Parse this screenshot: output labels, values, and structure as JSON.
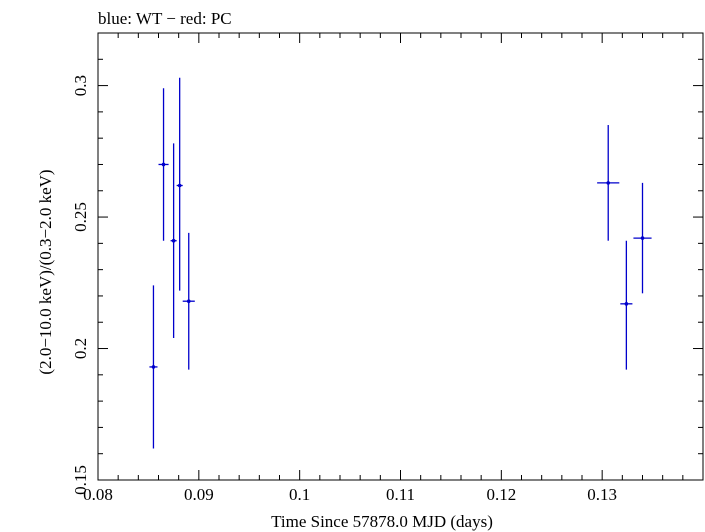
{
  "chart_data": {
    "type": "scatter",
    "title": "blue: WT − red: PC",
    "xlabel": "Time Since 57878.0 MJD (days)",
    "ylabel": "(2.0−10.0 keV)/(0.3−2.0 keV)",
    "xlim": [
      0.08,
      0.14
    ],
    "ylim": [
      0.15,
      0.32
    ],
    "grid": false,
    "x_ticks": [
      {
        "value": 0.08,
        "label": "0.08"
      },
      {
        "value": 0.09,
        "label": "0.09"
      },
      {
        "value": 0.1,
        "label": "0.1"
      },
      {
        "value": 0.11,
        "label": "0.11"
      },
      {
        "value": 0.12,
        "label": "0.12"
      },
      {
        "value": 0.13,
        "label": "0.13"
      }
    ],
    "y_ticks": [
      {
        "value": 0.15,
        "label": "0.15"
      },
      {
        "value": 0.2,
        "label": "0.2"
      },
      {
        "value": 0.25,
        "label": "0.25"
      },
      {
        "value": 0.3,
        "label": "0.3"
      }
    ],
    "series": [
      {
        "color": "#0000cc",
        "points": [
          {
            "x": 0.0855,
            "y": 0.193,
            "xerr": 0.0004,
            "yerr_low": 0.031,
            "yerr_high": 0.031
          },
          {
            "x": 0.0865,
            "y": 0.27,
            "xerr": 0.0005,
            "yerr_low": 0.029,
            "yerr_high": 0.029
          },
          {
            "x": 0.0875,
            "y": 0.241,
            "xerr": 0.0003,
            "yerr_low": 0.037,
            "yerr_high": 0.037
          },
          {
            "x": 0.0881,
            "y": 0.262,
            "xerr": 0.0003,
            "yerr_low": 0.04,
            "yerr_high": 0.041
          },
          {
            "x": 0.089,
            "y": 0.218,
            "xerr": 0.0006,
            "yerr_low": 0.026,
            "yerr_high": 0.026
          },
          {
            "x": 0.1306,
            "y": 0.263,
            "xerr": 0.0011,
            "yerr_low": 0.022,
            "yerr_high": 0.022
          },
          {
            "x": 0.1324,
            "y": 0.217,
            "xerr": 0.0006,
            "yerr_low": 0.025,
            "yerr_high": 0.024
          },
          {
            "x": 0.134,
            "y": 0.242,
            "xerr": 0.0009,
            "yerr_low": 0.021,
            "yerr_high": 0.021
          }
        ]
      }
    ]
  }
}
